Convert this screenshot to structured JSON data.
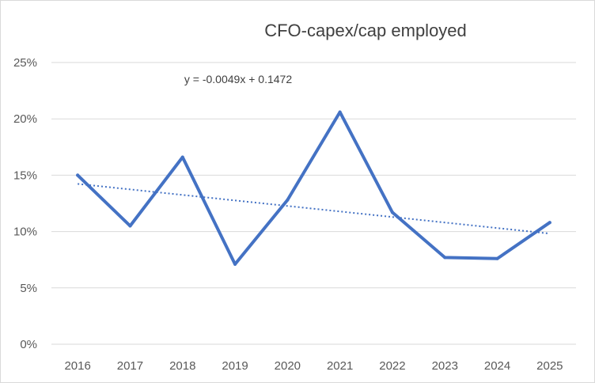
{
  "chart_data": {
    "type": "line",
    "title": "CFO-capex/cap employed",
    "xlabel": "",
    "ylabel": "",
    "categories": [
      "2016",
      "2017",
      "2018",
      "2019",
      "2020",
      "2021",
      "2022",
      "2023",
      "2024",
      "2025"
    ],
    "series": [
      {
        "values": [
          0.15,
          0.105,
          0.166,
          0.071,
          0.128,
          0.206,
          0.117,
          0.077,
          0.076,
          0.108
        ],
        "color": "#4472c4"
      }
    ],
    "trendline": {
      "type": "linear",
      "slope": -0.0049,
      "intercept": 0.1472,
      "equation": "y = -0.0049x + 0.1472",
      "color": "#4472c4",
      "style": "dotted"
    },
    "ylim": [
      0,
      0.25
    ],
    "yticks": [
      0,
      0.05,
      0.1,
      0.15,
      0.2,
      0.25
    ],
    "ytick_labels": [
      "0%",
      "5%",
      "10%",
      "15%",
      "20%",
      "25%"
    ],
    "grid": true,
    "gridline_color": "#d9d9d9",
    "legend": "none"
  }
}
